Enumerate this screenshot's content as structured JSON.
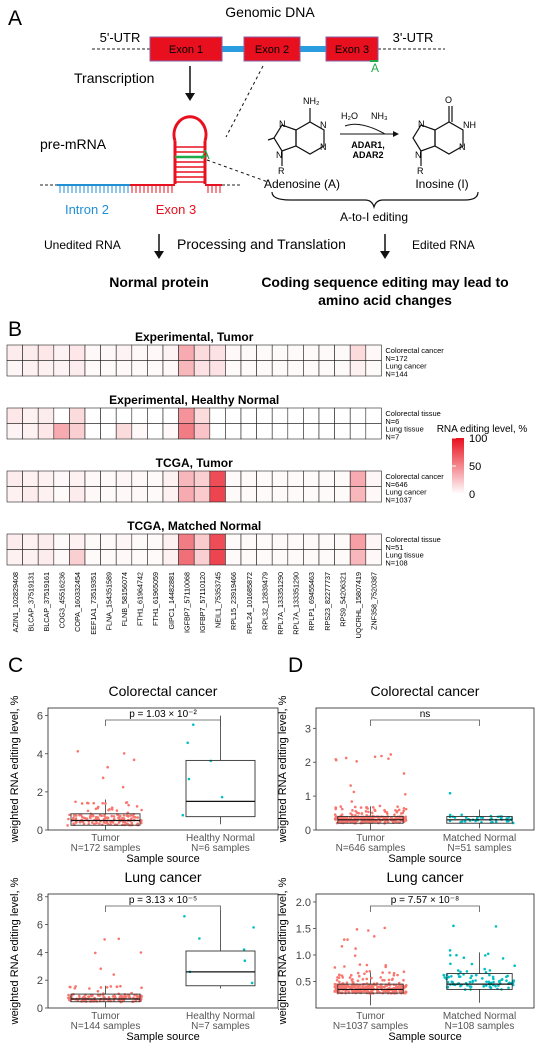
{
  "panel_a": {
    "letter": "A",
    "genomic_title": "Genomic DNA",
    "utr5": "5'-UTR",
    "utr3": "3'-UTR",
    "exon1": "Exon 1",
    "exon2": "Exon 2",
    "exon3": "Exon 3",
    "a_mark": "A",
    "transcription": "Transcription",
    "pre_mrna": "pre-mRNA",
    "intron2": "Intron 2",
    "exon3_label": "Exon 3",
    "hairpin_a": "A",
    "h2o": "H₂O",
    "nh3": "NH₃",
    "adar1": "ADAR1,",
    "adar2": "ADAR2",
    "nh2": "NH₂",
    "o": "O",
    "nh": "NH",
    "n": "N",
    "r": "R",
    "adenosine": "Adenosine (A)",
    "inosine": "Inosine (I)",
    "ato_i": "A-to-I editing",
    "unedited": "Unedited RNA",
    "processing": "Processing and Translation",
    "edited": "Edited RNA",
    "normal_protein": "Normal protein",
    "coding_line1": "Coding sequence editing may lead to",
    "coding_line2": "amino acid changes",
    "colors": {
      "exon": "#e8101e",
      "intron_blue": "#1f8fd6",
      "intron_line": "#2a9de0"
    }
  },
  "panel_b": {
    "letter": "B",
    "legend_title": "RNA editing level, %",
    "legend_ticks": [
      "100",
      "50",
      "0"
    ],
    "legend_values": [
      100,
      50,
      0
    ],
    "genes": [
      "AZIN1_102829408",
      "BLCAP_37519131",
      "BLCAP_37519161",
      "COG3_45516236",
      "COPA_160332454",
      "EEF1A1_73519351",
      "FLNA_154351589",
      "FLNB_58156074",
      "FTH1_61964742",
      "FTH1_61965059",
      "GIPC1_14482881",
      "IGFBP7_57110068",
      "IGFBP7_57110120",
      "NEIL1_75353745",
      "RPL15_23919466",
      "RPL24_101685872",
      "RPL32_12839479",
      "RPL7A_133351290",
      "RPL7A_133351290",
      "RPLP1_69455463",
      "RPS23_82277737",
      "RPS9_54206321",
      "UQCRHL_15807419",
      "ZNF358_7520387"
    ],
    "blocks": [
      {
        "title": "Experimental, Tumor",
        "rows": [
          {
            "label1": "Colorectal cancer",
            "label2": "N=172",
            "values": [
              8,
              8,
              10,
              5,
              10,
              3,
              3,
              5,
              3,
              3,
              5,
              35,
              15,
              12,
              3,
              2,
              2,
              2,
              2,
              2,
              2,
              2,
              15,
              3
            ]
          },
          {
            "label1": "Lung cancer",
            "label2": "N=144",
            "values": [
              4,
              6,
              6,
              5,
              8,
              2,
              2,
              3,
              2,
              2,
              3,
              30,
              12,
              12,
              2,
              2,
              2,
              2,
              2,
              2,
              2,
              2,
              6,
              2
            ]
          }
        ]
      },
      {
        "title": "Experimental, Healthy Normal",
        "rows": [
          {
            "label1": "Colorectal tissue",
            "label2": "N=6",
            "values": [
              10,
              6,
              8,
              0,
              15,
              0,
              0,
              0,
              0,
              0,
              0,
              45,
              15,
              0,
              0,
              0,
              0,
              0,
              0,
              0,
              0,
              0,
              0,
              0
            ]
          },
          {
            "label1": "Lung tissue",
            "label2": "N=7",
            "values": [
              5,
              6,
              10,
              35,
              20,
              0,
              0,
              15,
              3,
              0,
              3,
              55,
              25,
              0,
              0,
              0,
              0,
              0,
              0,
              0,
              0,
              0,
              0,
              0
            ]
          }
        ]
      },
      {
        "title": "TCGA, Tumor",
        "rows": [
          {
            "label1": "Colorectal cancer",
            "label2": "N=646",
            "values": [
              8,
              6,
              6,
              3,
              6,
              3,
              2,
              4,
              3,
              2,
              6,
              30,
              20,
              75,
              2,
              2,
              2,
              2,
              2,
              2,
              2,
              2,
              35,
              4
            ]
          },
          {
            "label1": "Lung cancer",
            "label2": "N=1037",
            "values": [
              6,
              8,
              6,
              2,
              8,
              3,
              2,
              3,
              3,
              2,
              6,
              35,
              22,
              78,
              2,
              2,
              2,
              2,
              2,
              2,
              2,
              2,
              30,
              3
            ]
          }
        ]
      },
      {
        "title": "TCGA, Matched Normal",
        "rows": [
          {
            "label1": "Colorectal tissue",
            "label2": "N=51",
            "values": [
              8,
              6,
              8,
              2,
              6,
              2,
              2,
              4,
              2,
              2,
              6,
              55,
              22,
              75,
              2,
              2,
              2,
              2,
              2,
              2,
              2,
              2,
              40,
              4
            ]
          },
          {
            "label1": "Lung tissue",
            "label2": "N=108",
            "values": [
              6,
              6,
              8,
              3,
              20,
              2,
              2,
              3,
              2,
              2,
              6,
              60,
              20,
              78,
              2,
              2,
              2,
              2,
              2,
              2,
              2,
              2,
              30,
              3
            ]
          }
        ]
      }
    ]
  },
  "panel_c": {
    "letter": "C"
  },
  "panel_d": {
    "letter": "D"
  },
  "chart_data": [
    {
      "type": "box",
      "title": "Colorectal cancer",
      "ylabel": "weighted RNA editing level, %",
      "xlabel": "Sample source",
      "ylim": [
        0,
        6.4
      ],
      "yticks": [
        "0",
        "2",
        "4",
        "6"
      ],
      "ytick_values": [
        0,
        2,
        4,
        6
      ],
      "categories": [
        "Tumor",
        "Healthy Normal"
      ],
      "category_n": [
        "N=172 samples",
        "N=6 samples"
      ],
      "boxes": [
        {
          "q1": 0.25,
          "median": 0.5,
          "q3": 0.85,
          "whisker_low": 0,
          "whisker_high": 1.6
        },
        {
          "q1": 0.7,
          "median": 1.5,
          "q3": 3.65,
          "whisker_low": 0.3,
          "whisker_high": 6.0
        }
      ],
      "annotation": "p = 1.03 × 10⁻²",
      "point_colors": [
        "#f8766d",
        "#00bfc4"
      ]
    },
    {
      "type": "box",
      "title": "Colorectal cancer",
      "ylabel": "weighted RNA editing level, %",
      "xlabel": "Sample source",
      "ylim": [
        0,
        3.6
      ],
      "yticks": [
        "0",
        "1",
        "2",
        "3"
      ],
      "ytick_values": [
        0,
        1,
        2,
        3
      ],
      "categories": [
        "Tumor",
        "Matched Normal"
      ],
      "category_n": [
        "N=646 samples",
        "N=51 samples"
      ],
      "boxes": [
        {
          "q1": 0.2,
          "median": 0.3,
          "q3": 0.4,
          "whisker_low": 0,
          "whisker_high": 0.7
        },
        {
          "q1": 0.2,
          "median": 0.3,
          "q3": 0.4,
          "whisker_low": 0.05,
          "whisker_high": 0.6
        }
      ],
      "annotation": "ns",
      "point_colors": [
        "#f8766d",
        "#00bfc4"
      ]
    },
    {
      "type": "box",
      "title": "Lung cancer",
      "ylabel": "weighted RNA editing level, %",
      "xlabel": "Sample source",
      "ylim": [
        0,
        8.2
      ],
      "yticks": [
        "0",
        "2",
        "4",
        "6",
        "8"
      ],
      "ytick_values": [
        0,
        2,
        4,
        6,
        8
      ],
      "categories": [
        "Tumor",
        "Healthy Normal"
      ],
      "category_n": [
        "N=144 samples",
        "N=7 samples"
      ],
      "boxes": [
        {
          "q1": 0.45,
          "median": 0.65,
          "q3": 1.0,
          "whisker_low": 0.05,
          "whisker_high": 1.6
        },
        {
          "q1": 1.6,
          "median": 2.6,
          "q3": 4.1,
          "whisker_low": 1.4,
          "whisker_high": 7.0
        }
      ],
      "annotation": "p = 3.13 × 10⁻⁵",
      "point_colors": [
        "#f8766d",
        "#00bfc4"
      ]
    },
    {
      "type": "box",
      "title": "Lung cancer",
      "ylabel": "weighted RNA editing level, %",
      "xlabel": "Sample source",
      "ylim": [
        0,
        2.15
      ],
      "yticks": [
        "0.5",
        "1.0",
        "1.5",
        "2.0"
      ],
      "ytick_values": [
        0.5,
        1.0,
        1.5,
        2.0
      ],
      "categories": [
        "Tumor",
        "Matched Normal"
      ],
      "category_n": [
        "N=1037 samples",
        "N=108 samples"
      ],
      "boxes": [
        {
          "q1": 0.28,
          "median": 0.35,
          "q3": 0.45,
          "whisker_low": 0.05,
          "whisker_high": 0.7
        },
        {
          "q1": 0.35,
          "median": 0.45,
          "q3": 0.65,
          "whisker_low": 0.1,
          "whisker_high": 1.05
        }
      ],
      "annotation": "p = 7.57 × 10⁻⁸",
      "point_colors": [
        "#f8766d",
        "#00bfc4"
      ]
    }
  ]
}
